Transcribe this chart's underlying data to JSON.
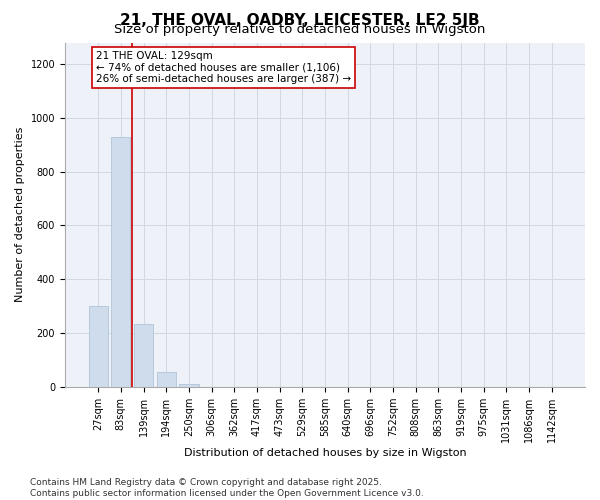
{
  "title_line1": "21, THE OVAL, OADBY, LEICESTER, LE2 5JB",
  "title_line2": "Size of property relative to detached houses in Wigston",
  "xlabel": "Distribution of detached houses by size in Wigston",
  "ylabel": "Number of detached properties",
  "categories": [
    "27sqm",
    "83sqm",
    "139sqm",
    "194sqm",
    "250sqm",
    "306sqm",
    "362sqm",
    "417sqm",
    "473sqm",
    "529sqm",
    "585sqm",
    "640sqm",
    "696sqm",
    "752sqm",
    "808sqm",
    "863sqm",
    "919sqm",
    "975sqm",
    "1031sqm",
    "1086sqm",
    "1142sqm"
  ],
  "values": [
    300,
    930,
    235,
    55,
    10,
    0,
    0,
    0,
    0,
    0,
    0,
    0,
    0,
    0,
    0,
    0,
    0,
    0,
    0,
    0,
    0
  ],
  "bar_color": "#cfdcec",
  "bar_edge_color": "#b0c4d8",
  "grid_color": "#d0d8e0",
  "background_color": "#eef2f8",
  "red_line_index": 2,
  "annotation_text": "21 THE OVAL: 129sqm\n← 74% of detached houses are smaller (1,106)\n26% of semi-detached houses are larger (387) →",
  "annotation_box_color": "#ffffff",
  "annotation_box_edge": "#cc0000",
  "ylim": [
    0,
    1280
  ],
  "yticks": [
    0,
    200,
    400,
    600,
    800,
    1000,
    1200
  ],
  "footer_text": "Contains HM Land Registry data © Crown copyright and database right 2025.\nContains public sector information licensed under the Open Government Licence v3.0.",
  "title_fontsize": 11,
  "subtitle_fontsize": 9.5,
  "tick_fontsize": 7,
  "label_fontsize": 8,
  "annotation_fontsize": 7.5,
  "footer_fontsize": 6.5
}
